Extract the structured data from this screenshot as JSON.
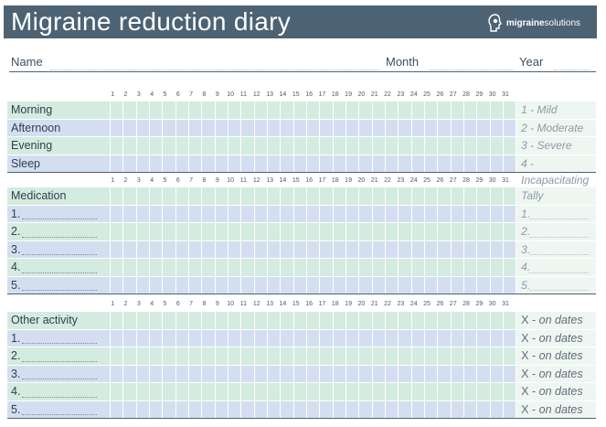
{
  "header": {
    "title": "Migraine reduction diary",
    "brand_bold": "migraine",
    "brand_light": "solutions"
  },
  "info": {
    "name_label": "Name",
    "month_label": "Month",
    "year_label": "Year"
  },
  "days": [
    "1",
    "2",
    "3",
    "4",
    "5",
    "6",
    "7",
    "8",
    "9",
    "10",
    "11",
    "12",
    "13",
    "14",
    "15",
    "16",
    "17",
    "18",
    "19",
    "20",
    "21",
    "22",
    "23",
    "24",
    "25",
    "26",
    "27",
    "28",
    "29",
    "30",
    "31"
  ],
  "severity": {
    "rows": [
      "Morning",
      "Afternoon",
      "Evening",
      "Sleep"
    ],
    "scale": [
      "1 - Mild",
      "2 - Moderate",
      "3 - Severe",
      "4 - Incapacitating"
    ]
  },
  "medication": {
    "label": "Medication",
    "tally_label": "Tally",
    "items": [
      "1.",
      "2.",
      "3.",
      "4.",
      "5."
    ]
  },
  "activity": {
    "label": "Other activity",
    "items": [
      "1.",
      "2.",
      "3.",
      "4.",
      "5."
    ],
    "x_prefix": "X - ",
    "x_suffix": "on dates"
  }
}
